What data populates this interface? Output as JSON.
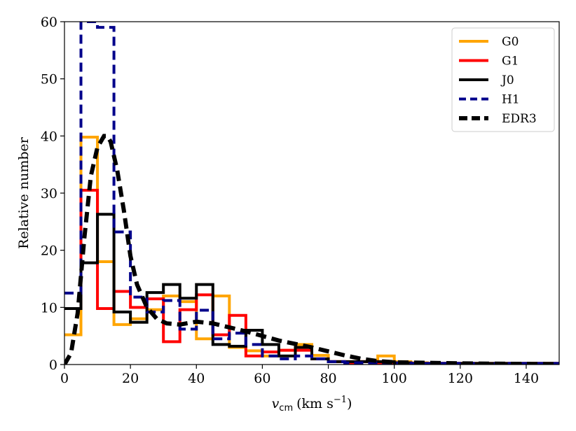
{
  "chart_data": {
    "type": "histogram",
    "xlabel": "v_cm (km s^-1)",
    "xlabel_parts": {
      "symbol": "v",
      "subscript": "cm",
      "units": "(km s",
      "exponent": "−1",
      "close": ")"
    },
    "ylabel": "Relative number",
    "xlim": [
      0,
      150
    ],
    "ylim": [
      0,
      60
    ],
    "xticks": [
      0,
      20,
      40,
      60,
      80,
      100,
      120,
      140
    ],
    "yticks": [
      0,
      10,
      20,
      30,
      40,
      50,
      60
    ],
    "grid": false,
    "legend_position": "top-right",
    "bin_edges": [
      0,
      5,
      10,
      15,
      20,
      25,
      30,
      35,
      40,
      45,
      50,
      55,
      60,
      65,
      70,
      75,
      80,
      85,
      90,
      95,
      100,
      105,
      110,
      115,
      120,
      125,
      130,
      135,
      140,
      145,
      150
    ],
    "series": [
      {
        "name": "G0",
        "color": "#ffa500",
        "style": "solid",
        "values": [
          5.2,
          39.8,
          18.0,
          7.0,
          8.0,
          9.6,
          12.0,
          11.0,
          4.5,
          12.0,
          3.0,
          2.4,
          1.5,
          2.5,
          3.5,
          1.6,
          0.5,
          0.5,
          0.5,
          1.5,
          0.5,
          0.3,
          0.2,
          0.2,
          0.2,
          0.2,
          0.2,
          0.2,
          0.2,
          0.2
        ]
      },
      {
        "name": "G1",
        "color": "#ff0000",
        "style": "solid",
        "values": [
          9.8,
          30.5,
          9.8,
          12.8,
          10.0,
          11.5,
          4.0,
          9.6,
          12.2,
          5.2,
          8.6,
          1.5,
          2.2,
          2.5,
          2.5,
          1.0,
          0.5,
          0.3,
          0.5,
          0.3,
          0.3,
          0.2,
          0.2,
          0.2,
          0.2,
          0.2,
          0.2,
          0.2,
          0.2,
          0.2
        ]
      },
      {
        "name": "J0",
        "color": "#000000",
        "style": "solid",
        "values": [
          9.8,
          17.8,
          26.3,
          9.2,
          7.4,
          12.6,
          14.0,
          11.6,
          14.0,
          3.5,
          3.2,
          6.0,
          3.5,
          1.5,
          3.0,
          1.0,
          0.5,
          0.5,
          0.5,
          0.5,
          0.3,
          0.2,
          0.2,
          0.2,
          0.2,
          0.2,
          0.2,
          0.2,
          0.2,
          0.2
        ]
      },
      {
        "name": "H1",
        "color": "#00008b",
        "style": "dashed",
        "values": [
          12.5,
          60.0,
          59.0,
          23.2,
          11.8,
          9.2,
          11.2,
          6.2,
          9.5,
          4.5,
          5.5,
          3.5,
          1.5,
          1.0,
          1.5,
          1.0,
          0.5,
          0.3,
          0.3,
          0.3,
          0.3,
          0.2,
          0.2,
          0.2,
          0.2,
          0.2,
          0.2,
          0.2,
          0.2,
          0.2
        ]
      },
      {
        "name": "EDR3",
        "color": "#000000",
        "style": "thick-dashed",
        "kind": "line",
        "x": [
          0,
          2,
          4,
          6,
          8,
          10,
          12,
          13,
          14,
          16,
          18,
          20,
          22,
          25,
          28,
          31,
          35,
          40,
          45,
          50,
          55,
          60,
          65,
          70,
          75,
          80,
          85,
          90,
          95,
          100,
          110,
          120,
          130,
          140,
          150
        ],
        "y": [
          0,
          2,
          9,
          22,
          33,
          38,
          40,
          40,
          39,
          34,
          27,
          19,
          14,
          10,
          8,
          7.2,
          7,
          7.5,
          7.2,
          6.5,
          5.8,
          5,
          4.2,
          3.6,
          3,
          2.3,
          1.6,
          1,
          0.6,
          0.4,
          0.3,
          0.2,
          0.15,
          0.1,
          0.08
        ]
      }
    ]
  }
}
